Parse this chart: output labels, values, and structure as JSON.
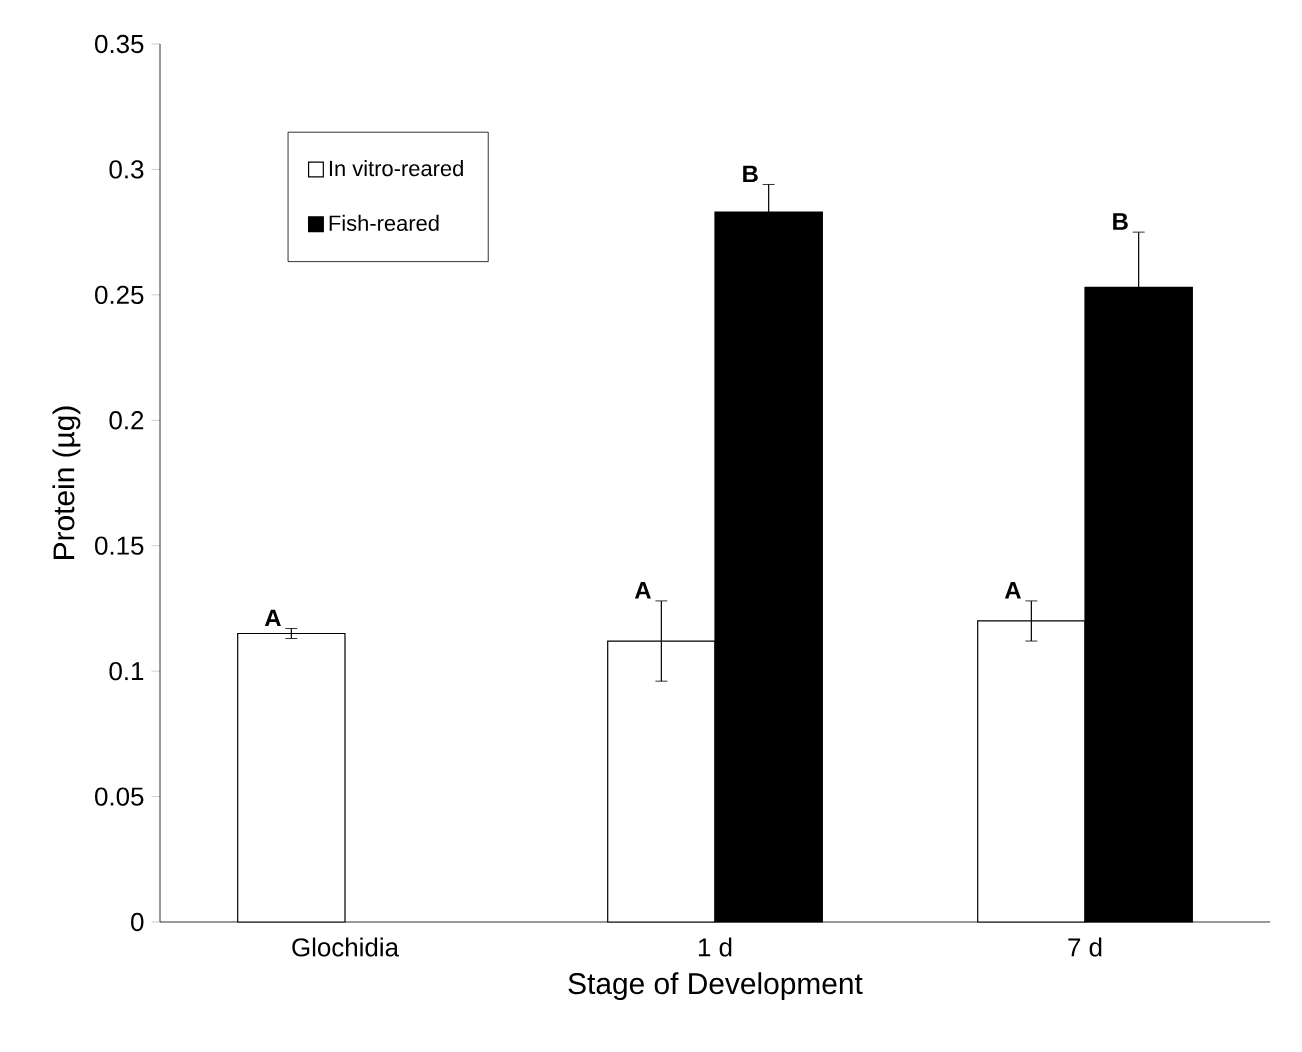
{
  "chart_data": {
    "type": "bar",
    "xlabel": "Stage of Development",
    "ylabel": "Protein (µg)",
    "categories": [
      "Glochidia",
      "1 d",
      "7 d"
    ],
    "series": [
      {
        "name": "In vitro-reared",
        "color": "#ffffff",
        "values": [
          0.115,
          0.112,
          0.12
        ],
        "errors": [
          0.002,
          0.016,
          0.008
        ]
      },
      {
        "name": "Fish-reared",
        "color": "#000000",
        "values": [
          null,
          0.283,
          0.253
        ],
        "errors": [
          null,
          0.011,
          0.022
        ]
      }
    ],
    "ylim": [
      0,
      0.35
    ],
    "yticks": [
      0,
      0.05,
      0.1,
      0.15,
      0.2,
      0.25,
      0.3,
      0.35
    ],
    "annotations": [
      "A",
      "A",
      "B",
      "A",
      "B"
    ],
    "grid": false,
    "legend": "top left"
  }
}
